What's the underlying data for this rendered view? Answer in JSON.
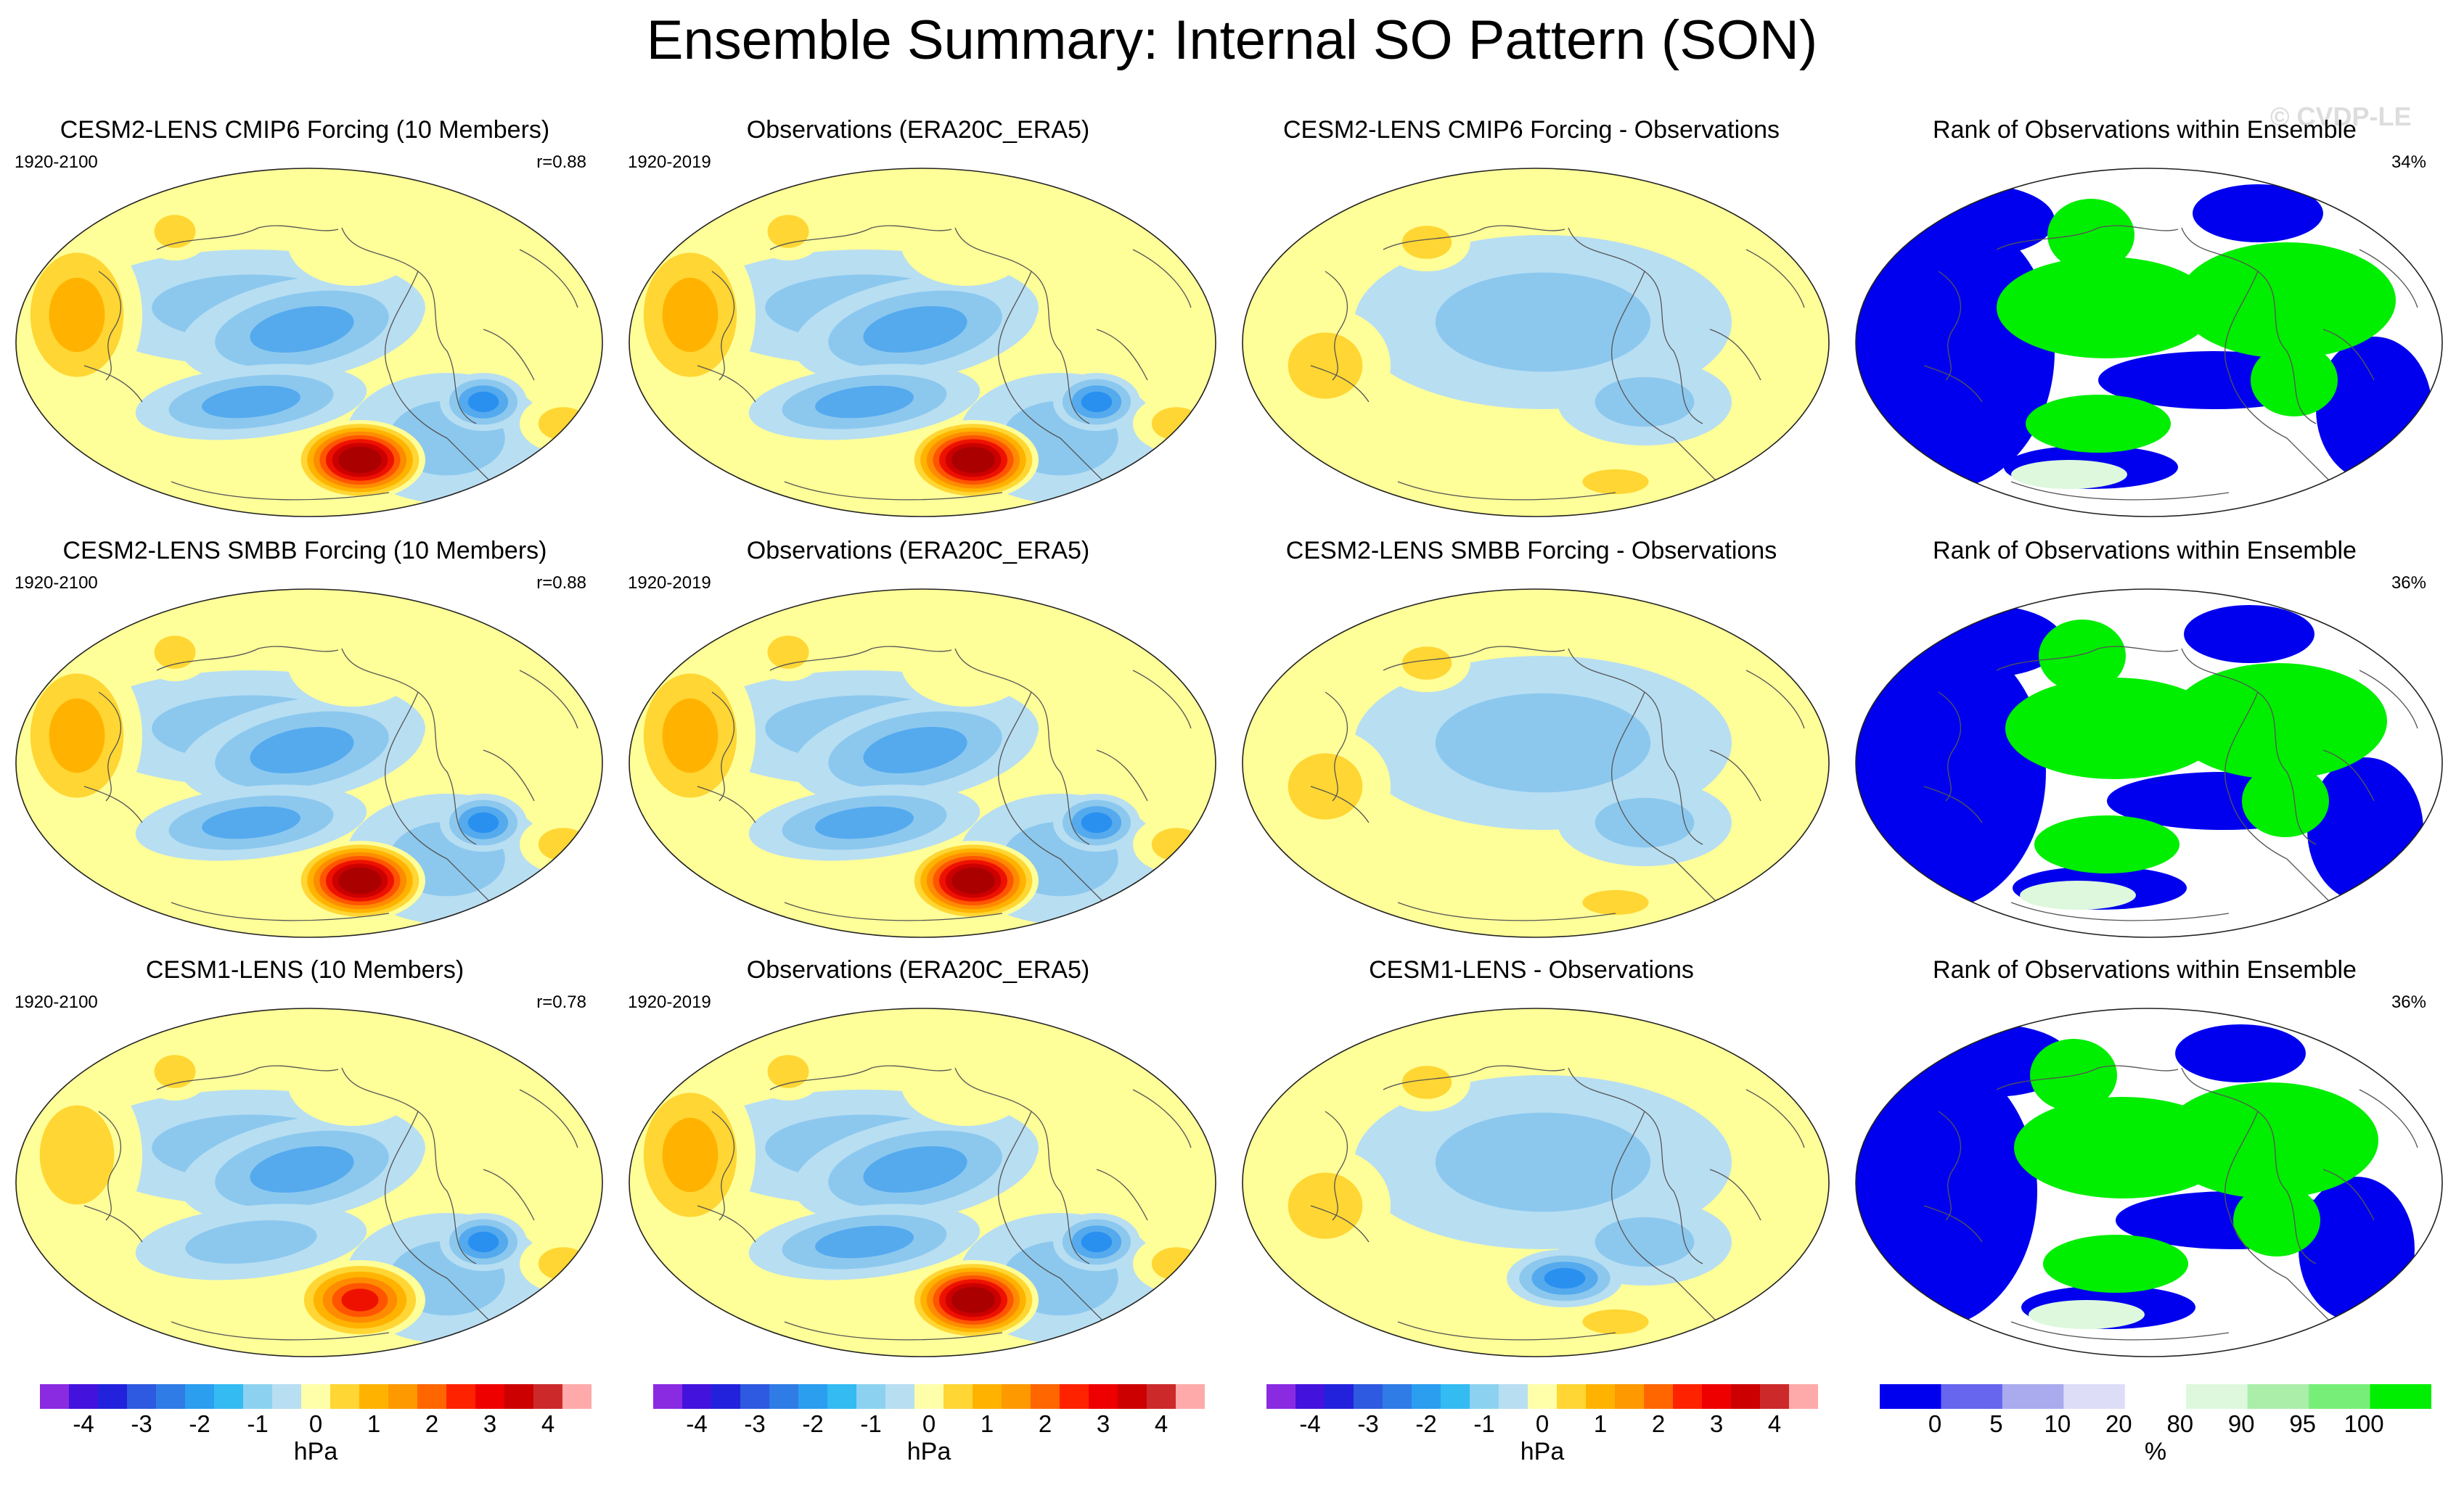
{
  "title": "Ensemble Summary: Internal SO Pattern (SON)",
  "watermark": "© CVDP-LE",
  "colors": {
    "pos": [
      "#ffff99",
      "#ffd633",
      "#ffb300",
      "#ff8c00",
      "#ff5500",
      "#ee1100",
      "#cc0000",
      "#aa0000"
    ],
    "neg": [
      "#b8def2",
      "#8cc8ee",
      "#55aaee",
      "#2a90f0",
      "#3370e0",
      "#2244cc",
      "#3322cc",
      "#7722dd"
    ],
    "pattern_bar": [
      "#8a2be2",
      "#4412dd",
      "#2222dd",
      "#2d5ae0",
      "#2f7ce6",
      "#2b9ef0",
      "#33bbf2",
      "#8cd2f0",
      "#b8def2",
      "#ffffaa",
      "#ffd633",
      "#ffb300",
      "#ff9900",
      "#ff6600",
      "#ff2200",
      "#ee0000",
      "#cc0000",
      "#cc2a2a",
      "#ffaaaa"
    ],
    "rank_bar": [
      "#0000ee",
      "#6666ee",
      "#aaaaee",
      "#ddddf8",
      "#ffffff",
      "#ddf8dd",
      "#aaeeaa",
      "#77ee77",
      "#00ee00"
    ],
    "rank_low": "#0000ee",
    "rank_high": "#00ee00",
    "rank_midlow": "#ddddf8",
    "rank_midhigh": "#ddf8dd"
  },
  "rows": [
    {
      "model": {
        "title": "CESM2-LENS CMIP6 Forcing (10 Members)",
        "years": "1920-2100",
        "r": "r=0.88",
        "strength": 1.0
      },
      "obs": {
        "title": "Observations (ERA20C_ERA5)",
        "years": "1920-2019"
      },
      "diff": {
        "title": "CESM2-LENS CMIP6 Forcing - Observations"
      },
      "rank": {
        "title": "Rank of Observations within Ensemble",
        "pct": "34%"
      }
    },
    {
      "model": {
        "title": "CESM2-LENS SMBB Forcing (10 Members)",
        "years": "1920-2100",
        "r": "r=0.88",
        "strength": 1.0
      },
      "obs": {
        "title": "Observations (ERA20C_ERA5)",
        "years": "1920-2019"
      },
      "diff": {
        "title": "CESM2-LENS SMBB Forcing - Observations"
      },
      "rank": {
        "title": "Rank of Observations within Ensemble",
        "pct": "36%"
      }
    },
    {
      "model": {
        "title": "CESM1-LENS (10 Members)",
        "years": "1920-2100",
        "r": "r=0.78",
        "strength": 0.7
      },
      "obs": {
        "title": "Observations (ERA20C_ERA5)",
        "years": "1920-2019"
      },
      "diff": {
        "title": "CESM1-LENS - Observations"
      },
      "rank": {
        "title": "Rank of Observations within Ensemble",
        "pct": "36%"
      }
    }
  ],
  "chart_data": [
    {
      "type": "heatmap",
      "name": "pattern_colorbar",
      "levels": [
        -4.5,
        -4,
        -3.5,
        -3,
        -2.5,
        -2,
        -1.5,
        -1,
        -0.5,
        0,
        0.5,
        1,
        1.5,
        2,
        2.5,
        3,
        3.5,
        4,
        4.5
      ],
      "tick_labels": [
        "-4",
        "-3",
        "-2",
        "-1",
        "0",
        "1",
        "2",
        "3",
        "4"
      ],
      "tick_values": [
        -4,
        -3,
        -2,
        -1,
        0,
        1,
        2,
        3,
        4
      ],
      "range": [
        -4.75,
        4.75
      ],
      "units": "hPa"
    },
    {
      "type": "heatmap",
      "name": "rank_colorbar",
      "boundaries": [
        0,
        5,
        10,
        20,
        80,
        90,
        95,
        100
      ],
      "tick_labels": [
        "0",
        "5",
        "10",
        "20",
        "80",
        "90",
        "95",
        "100"
      ],
      "units": "%"
    }
  ]
}
